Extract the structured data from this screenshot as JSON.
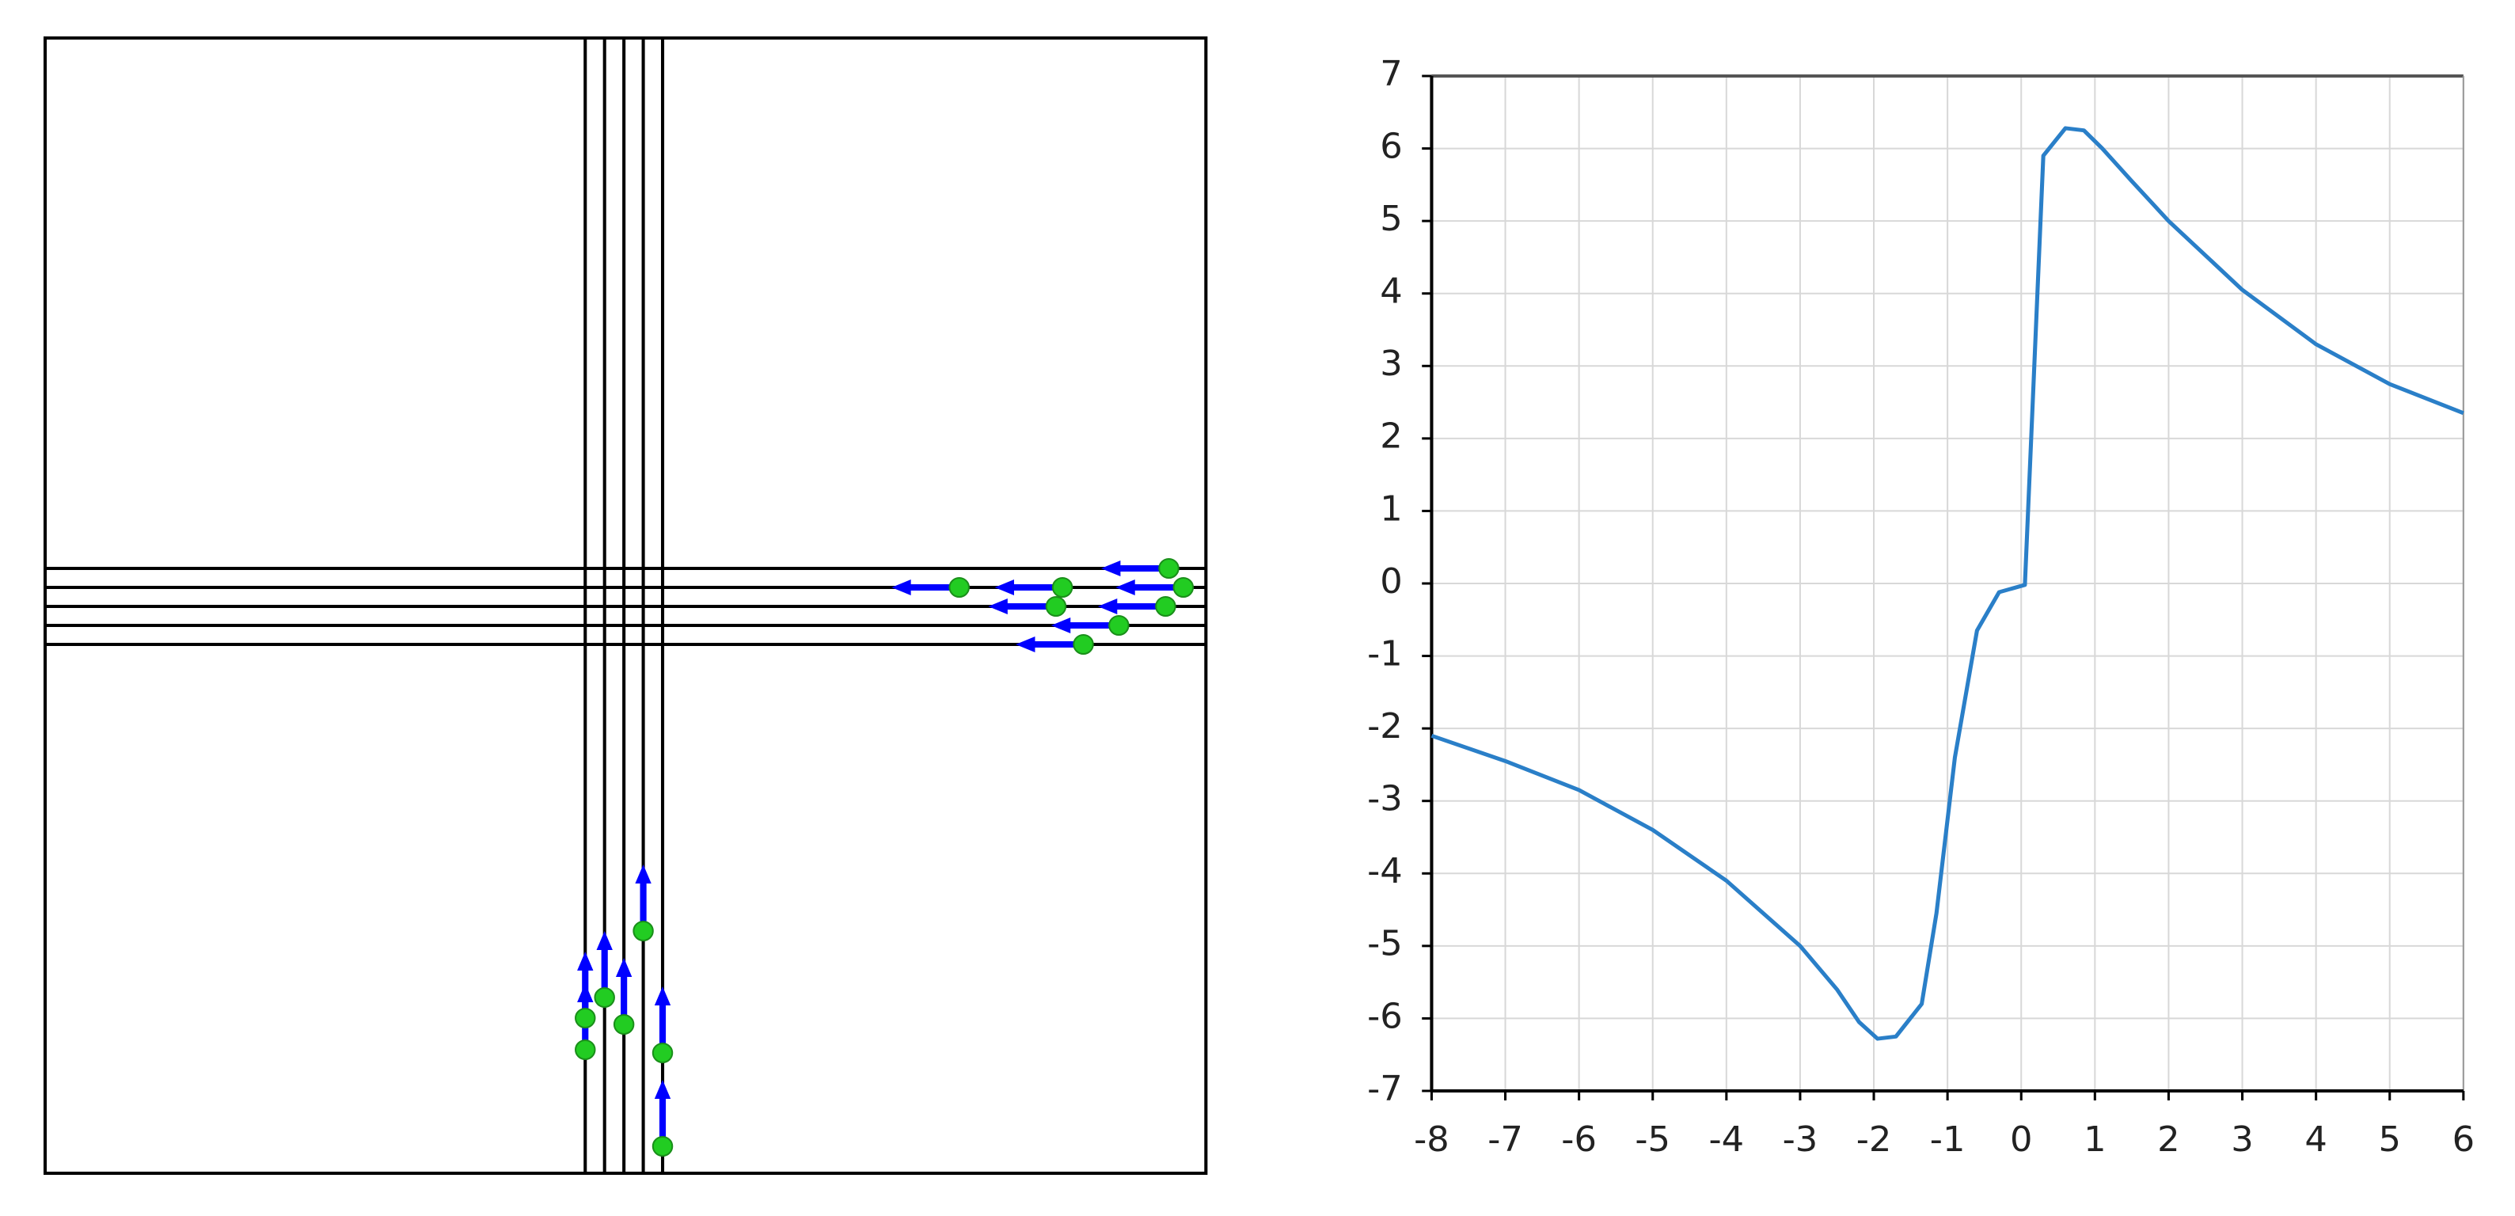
{
  "chart_data": {
    "type": "line",
    "x": [
      -8,
      -7,
      -6,
      -5,
      -4,
      -3,
      -2.5,
      -2.2,
      -1.95,
      -1.7,
      -1.35,
      -1.15,
      -0.9,
      -0.6,
      -0.3,
      0.05,
      0.3,
      0.6,
      0.85,
      1.1,
      1.5,
      2,
      3,
      4,
      5,
      6
    ],
    "values": [
      -2.1,
      -2.45,
      -2.85,
      -3.4,
      -4.1,
      -5.0,
      -5.6,
      -6.05,
      -6.28,
      -6.25,
      -5.8,
      -4.55,
      -2.4,
      -0.65,
      -0.12,
      -0.02,
      5.9,
      6.28,
      6.25,
      6.0,
      5.55,
      5.0,
      4.05,
      3.3,
      2.75,
      2.35
    ],
    "color": "#2a7fc8",
    "xlim": [
      -8,
      6
    ],
    "ylim": [
      -7,
      7
    ],
    "xticks": [
      -8,
      -7,
      -6,
      -5,
      -4,
      -3,
      -2,
      -1,
      0,
      1,
      2,
      3,
      4,
      5,
      6
    ],
    "yticks": [
      -7,
      -6,
      -5,
      -4,
      -3,
      -2,
      -1,
      0,
      1,
      2,
      3,
      4,
      5,
      6,
      7
    ],
    "grid": true
  }
}
